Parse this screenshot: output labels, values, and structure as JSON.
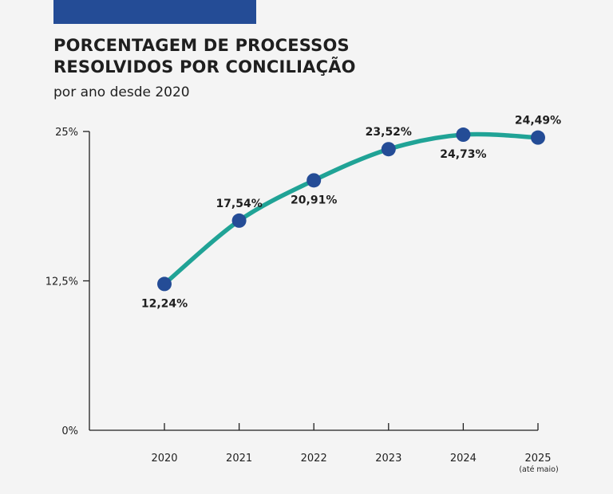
{
  "header": {
    "title_line1": "PORCENTAGEM DE PROCESSOS",
    "title_line2": "RESOLVIDOS POR CONCILIAÇÃO",
    "subtitle": "por ano desde 2020"
  },
  "colors": {
    "accent_bar": "#244c96",
    "line": "#20a396",
    "marker": "#244c96",
    "axis": "#1f1f1f"
  },
  "chart_data": {
    "type": "line",
    "title": "PORCENTAGEM DE PROCESSOS RESOLVIDOS POR CONCILIAÇÃO",
    "subtitle": "por ano desde 2020",
    "xlabel": "",
    "ylabel": "",
    "categories": [
      "2020",
      "2021",
      "2022",
      "2023",
      "2024",
      "2025"
    ],
    "category_notes": [
      "",
      "",
      "",
      "",
      "",
      "(até maio)"
    ],
    "values": [
      12.24,
      17.54,
      20.91,
      23.52,
      24.73,
      24.49
    ],
    "data_labels": [
      "12,24%",
      "17,54%",
      "20,91%",
      "23,52%",
      "24,73%",
      "24,49%"
    ],
    "label_positions": [
      "below",
      "above",
      "below",
      "above",
      "below",
      "above"
    ],
    "ylim": [
      0,
      25
    ],
    "yticks": [
      0,
      12.5,
      25
    ],
    "ytick_labels": [
      "0%",
      "12,5%",
      "25%"
    ],
    "grid": false,
    "legend": "none"
  }
}
